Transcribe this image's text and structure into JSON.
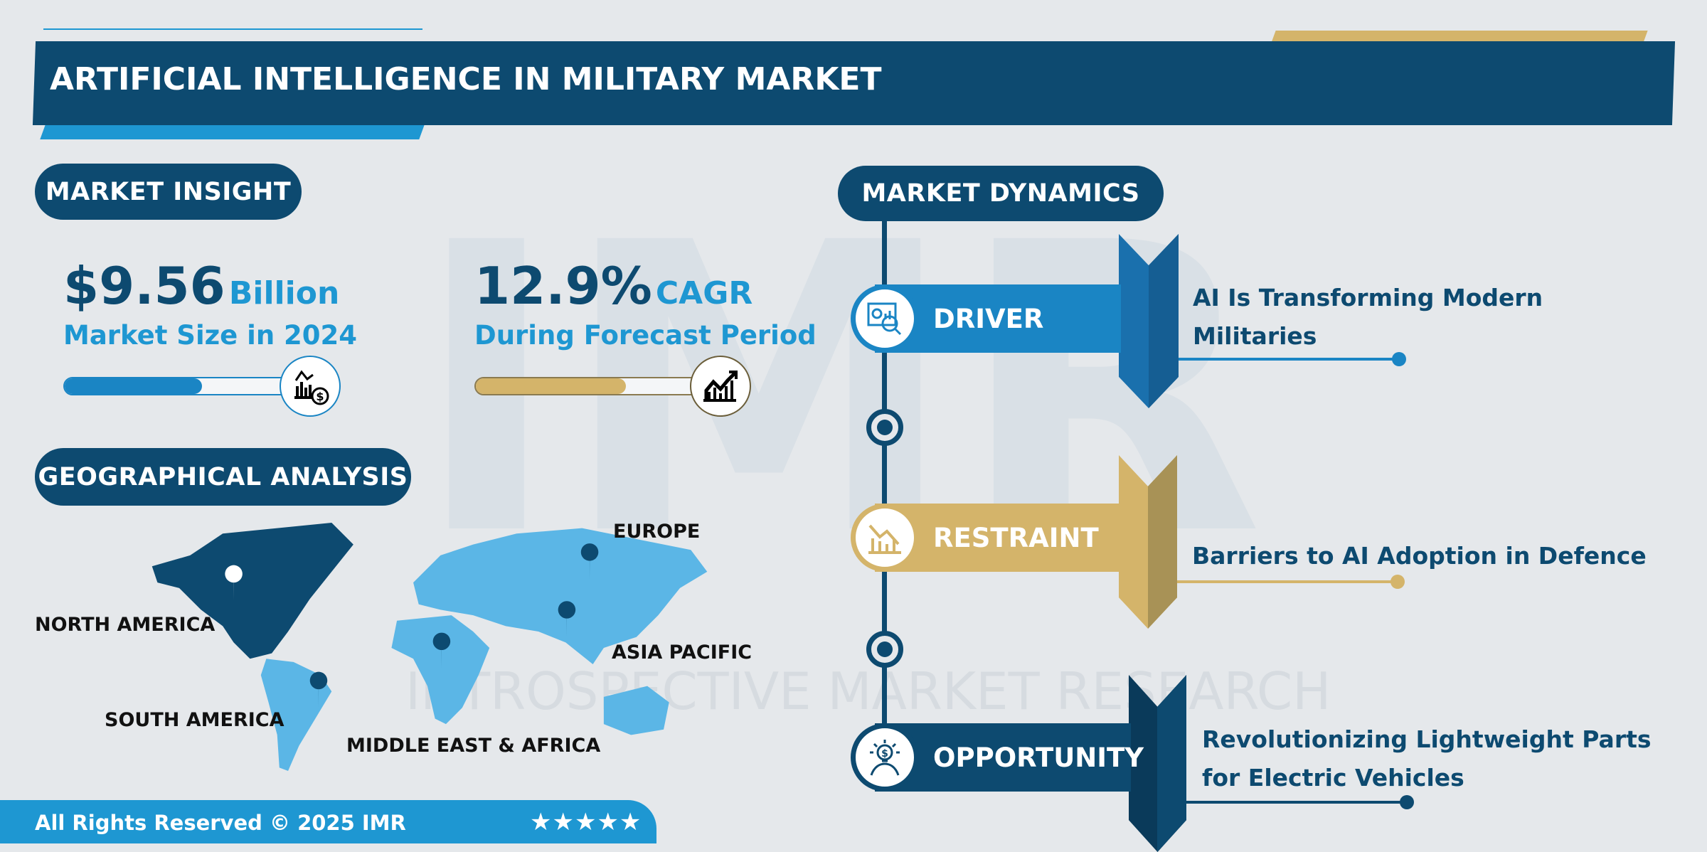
{
  "title": "ARTIFICIAL INTELLIGENCE IN MILITARY MARKET",
  "watermark": "INTROSPECTIVE MARKET RESEARCH",
  "colors": {
    "navy": "#0d4a70",
    "blue": "#1a85c4",
    "gold": "#d4b46a",
    "light_blue": "#1e97d2",
    "map_dark": "#0d4a70",
    "map_light": "#5bb6e6"
  },
  "insight": {
    "heading": "MARKET INSIGHT",
    "size": {
      "value": "$9.56",
      "unit": "Billion",
      "label": "Market Size in 2024",
      "bar_fill_pct": 55,
      "icon": "chart-dollar-icon"
    },
    "cagr": {
      "value": "12.9%",
      "unit": "CAGR",
      "label": "During Forecast Period",
      "bar_fill_pct": 62,
      "icon": "growth-chart-icon"
    }
  },
  "geo": {
    "heading": "GEOGRAPHICAL ANALYSIS",
    "regions": [
      "NORTH AMERICA",
      "EUROPE",
      "ASIA PACIFIC",
      "SOUTH AMERICA",
      "MIDDLE EAST & AFRICA"
    ]
  },
  "dynamics": {
    "heading": "MARKET DYNAMICS",
    "items": [
      {
        "label": "DRIVER",
        "text": [
          "AI Is Transforming Modern",
          "Militaries"
        ],
        "icon": "analytics-icon"
      },
      {
        "label": "RESTRAINT",
        "text": [
          "Barriers to AI Adoption in Defence"
        ],
        "icon": "declining-chart-icon"
      },
      {
        "label": "OPPORTUNITY",
        "text": [
          "Revolutionizing Lightweight Parts",
          "for Electric Vehicles"
        ],
        "icon": "idea-dollar-icon"
      }
    ]
  },
  "footer": {
    "copyright": "All Rights Reserved © 2025 IMR",
    "stars": "★★★★★",
    "rating": 5
  }
}
